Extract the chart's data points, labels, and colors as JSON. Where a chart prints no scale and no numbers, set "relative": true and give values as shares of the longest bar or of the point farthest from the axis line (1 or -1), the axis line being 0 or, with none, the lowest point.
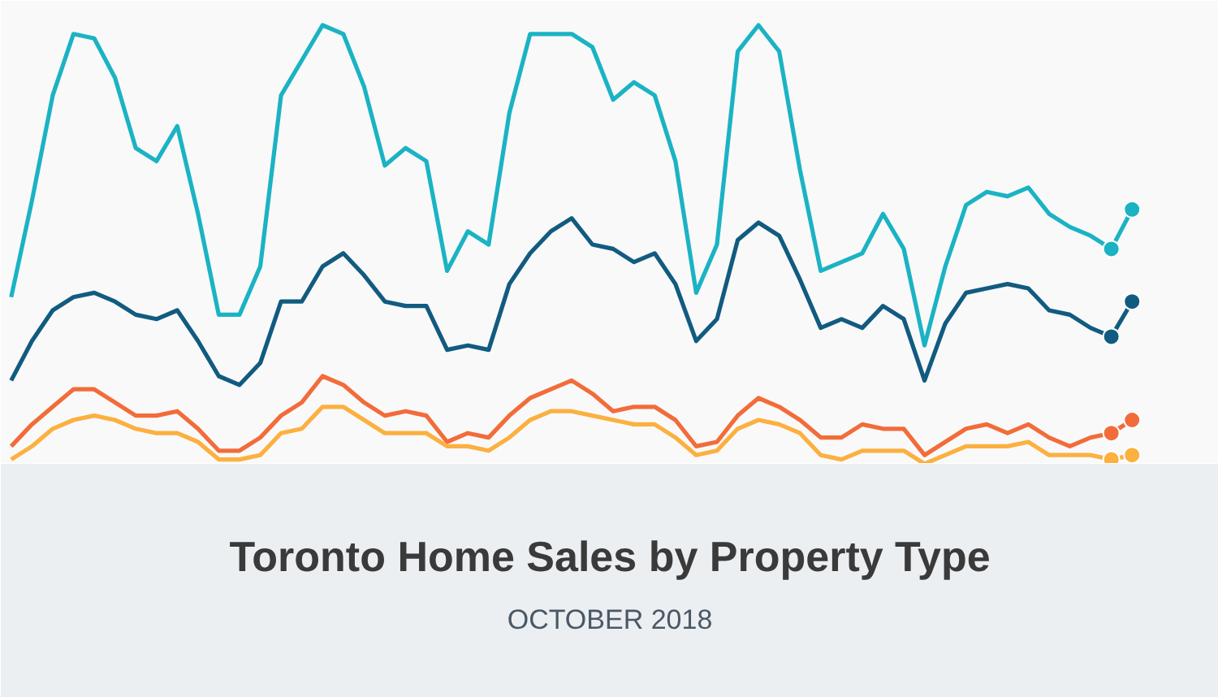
{
  "chart_data": {
    "type": "line",
    "title": "Toronto Home Sales by Property Type",
    "subtitle": "OCTOBER 2018",
    "relative": true,
    "line_style": "solid",
    "categories": [
      null,
      null,
      null,
      null,
      null,
      null,
      null,
      null,
      null,
      null,
      null,
      null,
      null,
      null,
      null,
      null,
      null,
      null,
      null,
      null,
      null,
      null,
      null,
      null,
      null,
      null,
      null,
      null,
      null,
      null,
      null,
      null,
      null,
      null,
      null,
      null,
      null,
      null,
      null,
      null,
      null,
      null,
      null,
      null,
      null,
      null,
      null,
      null,
      null,
      null,
      null,
      null,
      null,
      null,
      null
    ],
    "series": [
      {
        "color": "#1bb3c4",
        "values": [
          0.38,
          0.6,
          0.84,
          0.98,
          0.97,
          0.88,
          0.72,
          0.69,
          0.77,
          0.57,
          0.34,
          0.34,
          0.45,
          0.84,
          0.92,
          1.0,
          0.98,
          0.86,
          0.68,
          0.72,
          0.69,
          0.44,
          0.53,
          0.5,
          0.8,
          0.98,
          0.98,
          0.98,
          0.95,
          0.83,
          0.87,
          0.84,
          0.69,
          0.39,
          0.5,
          0.94,
          1.0,
          0.94,
          0.67,
          0.44,
          0.46,
          0.48,
          0.57,
          0.49,
          0.27,
          0.45,
          0.59,
          0.62,
          0.61,
          0.63,
          0.57,
          0.54,
          0.52,
          0.49,
          null
        ]
      },
      {
        "color": "#1bb3c4",
        "marker": "circle",
        "values": [
          null,
          null,
          null,
          null,
          null,
          null,
          null,
          null,
          null,
          null,
          null,
          null,
          null,
          null,
          null,
          null,
          null,
          null,
          null,
          null,
          null,
          null,
          null,
          null,
          null,
          null,
          null,
          null,
          null,
          null,
          null,
          null,
          null,
          null,
          null,
          null,
          null,
          null,
          null,
          null,
          null,
          null,
          null,
          null,
          null,
          null,
          null,
          null,
          null,
          null,
          null,
          null,
          null,
          0.49,
          0.58
        ]
      },
      {
        "color": "#125b80",
        "values": [
          0.19,
          0.28,
          0.35,
          0.38,
          0.39,
          0.37,
          0.34,
          0.33,
          0.35,
          0.28,
          0.2,
          0.18,
          0.23,
          0.37,
          0.37,
          0.45,
          0.48,
          0.43,
          0.37,
          0.36,
          0.36,
          0.26,
          0.27,
          0.26,
          0.41,
          0.48,
          0.53,
          0.56,
          0.5,
          0.49,
          0.46,
          0.48,
          0.41,
          0.28,
          0.33,
          0.51,
          0.55,
          0.52,
          0.42,
          0.31,
          0.33,
          0.31,
          0.36,
          0.33,
          0.19,
          0.32,
          0.39,
          0.4,
          0.41,
          0.4,
          0.35,
          0.34,
          0.31,
          0.29,
          null
        ]
      },
      {
        "color": "#125b80",
        "marker": "circle",
        "values": [
          null,
          null,
          null,
          null,
          null,
          null,
          null,
          null,
          null,
          null,
          null,
          null,
          null,
          null,
          null,
          null,
          null,
          null,
          null,
          null,
          null,
          null,
          null,
          null,
          null,
          null,
          null,
          null,
          null,
          null,
          null,
          null,
          null,
          null,
          null,
          null,
          null,
          null,
          null,
          null,
          null,
          null,
          null,
          null,
          null,
          null,
          null,
          null,
          null,
          null,
          null,
          null,
          null,
          0.29,
          0.37
        ]
      },
      {
        "color": "#f26c3a",
        "values": [
          0.04,
          0.09,
          0.13,
          0.17,
          0.17,
          0.14,
          0.11,
          0.11,
          0.12,
          0.08,
          0.03,
          0.03,
          0.06,
          0.11,
          0.14,
          0.2,
          0.18,
          0.14,
          0.11,
          0.12,
          0.11,
          0.05,
          0.07,
          0.06,
          0.11,
          0.15,
          0.17,
          0.19,
          0.16,
          0.12,
          0.13,
          0.13,
          0.1,
          0.04,
          0.05,
          0.11,
          0.15,
          0.13,
          0.1,
          0.06,
          0.06,
          0.09,
          0.08,
          0.08,
          0.02,
          0.05,
          0.08,
          0.09,
          0.07,
          0.09,
          0.06,
          0.04,
          0.06,
          0.07,
          null
        ]
      },
      {
        "color": "#f26c3a",
        "marker": "circle",
        "values": [
          null,
          null,
          null,
          null,
          null,
          null,
          null,
          null,
          null,
          null,
          null,
          null,
          null,
          null,
          null,
          null,
          null,
          null,
          null,
          null,
          null,
          null,
          null,
          null,
          null,
          null,
          null,
          null,
          null,
          null,
          null,
          null,
          null,
          null,
          null,
          null,
          null,
          null,
          null,
          null,
          null,
          null,
          null,
          null,
          null,
          null,
          null,
          null,
          null,
          null,
          null,
          null,
          null,
          0.07,
          0.1
        ]
      },
      {
        "color": "#fbb040",
        "values": [
          0.01,
          0.04,
          0.08,
          0.1,
          0.11,
          0.1,
          0.08,
          0.07,
          0.07,
          0.05,
          0.01,
          0.01,
          0.02,
          0.07,
          0.08,
          0.13,
          0.13,
          0.1,
          0.07,
          0.07,
          0.07,
          0.04,
          0.04,
          0.03,
          0.06,
          0.1,
          0.12,
          0.12,
          0.11,
          0.1,
          0.09,
          0.09,
          0.06,
          0.02,
          0.03,
          0.08,
          0.1,
          0.09,
          0.07,
          0.02,
          0.01,
          0.03,
          0.03,
          0.03,
          0.0,
          0.02,
          0.04,
          0.04,
          0.04,
          0.05,
          0.02,
          0.02,
          0.02,
          0.01,
          null
        ]
      },
      {
        "color": "#fbb040",
        "marker": "circle",
        "values": [
          null,
          null,
          null,
          null,
          null,
          null,
          null,
          null,
          null,
          null,
          null,
          null,
          null,
          null,
          null,
          null,
          null,
          null,
          null,
          null,
          null,
          null,
          null,
          null,
          null,
          null,
          null,
          null,
          null,
          null,
          null,
          null,
          null,
          null,
          null,
          null,
          null,
          null,
          null,
          null,
          null,
          null,
          null,
          null,
          null,
          null,
          null,
          null,
          null,
          null,
          null,
          null,
          null,
          0.01,
          0.02
        ]
      }
    ]
  }
}
